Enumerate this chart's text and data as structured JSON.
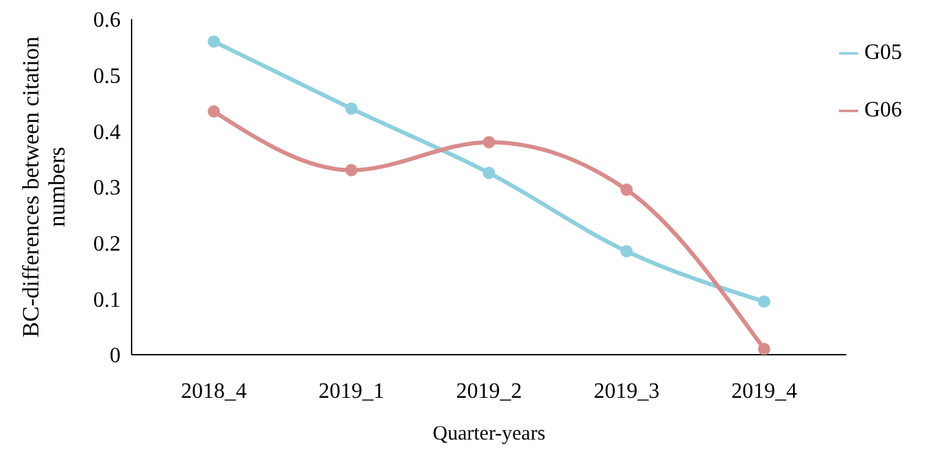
{
  "chart_data": {
    "type": "line",
    "xlabel": "Quarter-years",
    "ylabel": "BC-differences between citation numbers",
    "categories": [
      "2018_4",
      "2019_1",
      "2019_2",
      "2019_3",
      "2019_4"
    ],
    "series": [
      {
        "name": "G05",
        "color": "#8ecfdf",
        "values": [
          0.56,
          0.44,
          0.325,
          0.185,
          0.095
        ]
      },
      {
        "name": "G06",
        "color": "#d98c8c",
        "values": [
          0.435,
          0.33,
          0.38,
          0.295,
          0.01
        ]
      }
    ],
    "ylim": [
      0,
      0.6
    ],
    "yticks": [
      0,
      0.1,
      0.2,
      0.3,
      0.4,
      0.5,
      0.6
    ],
    "grid": false,
    "legend": "top right",
    "marker": "circle"
  }
}
